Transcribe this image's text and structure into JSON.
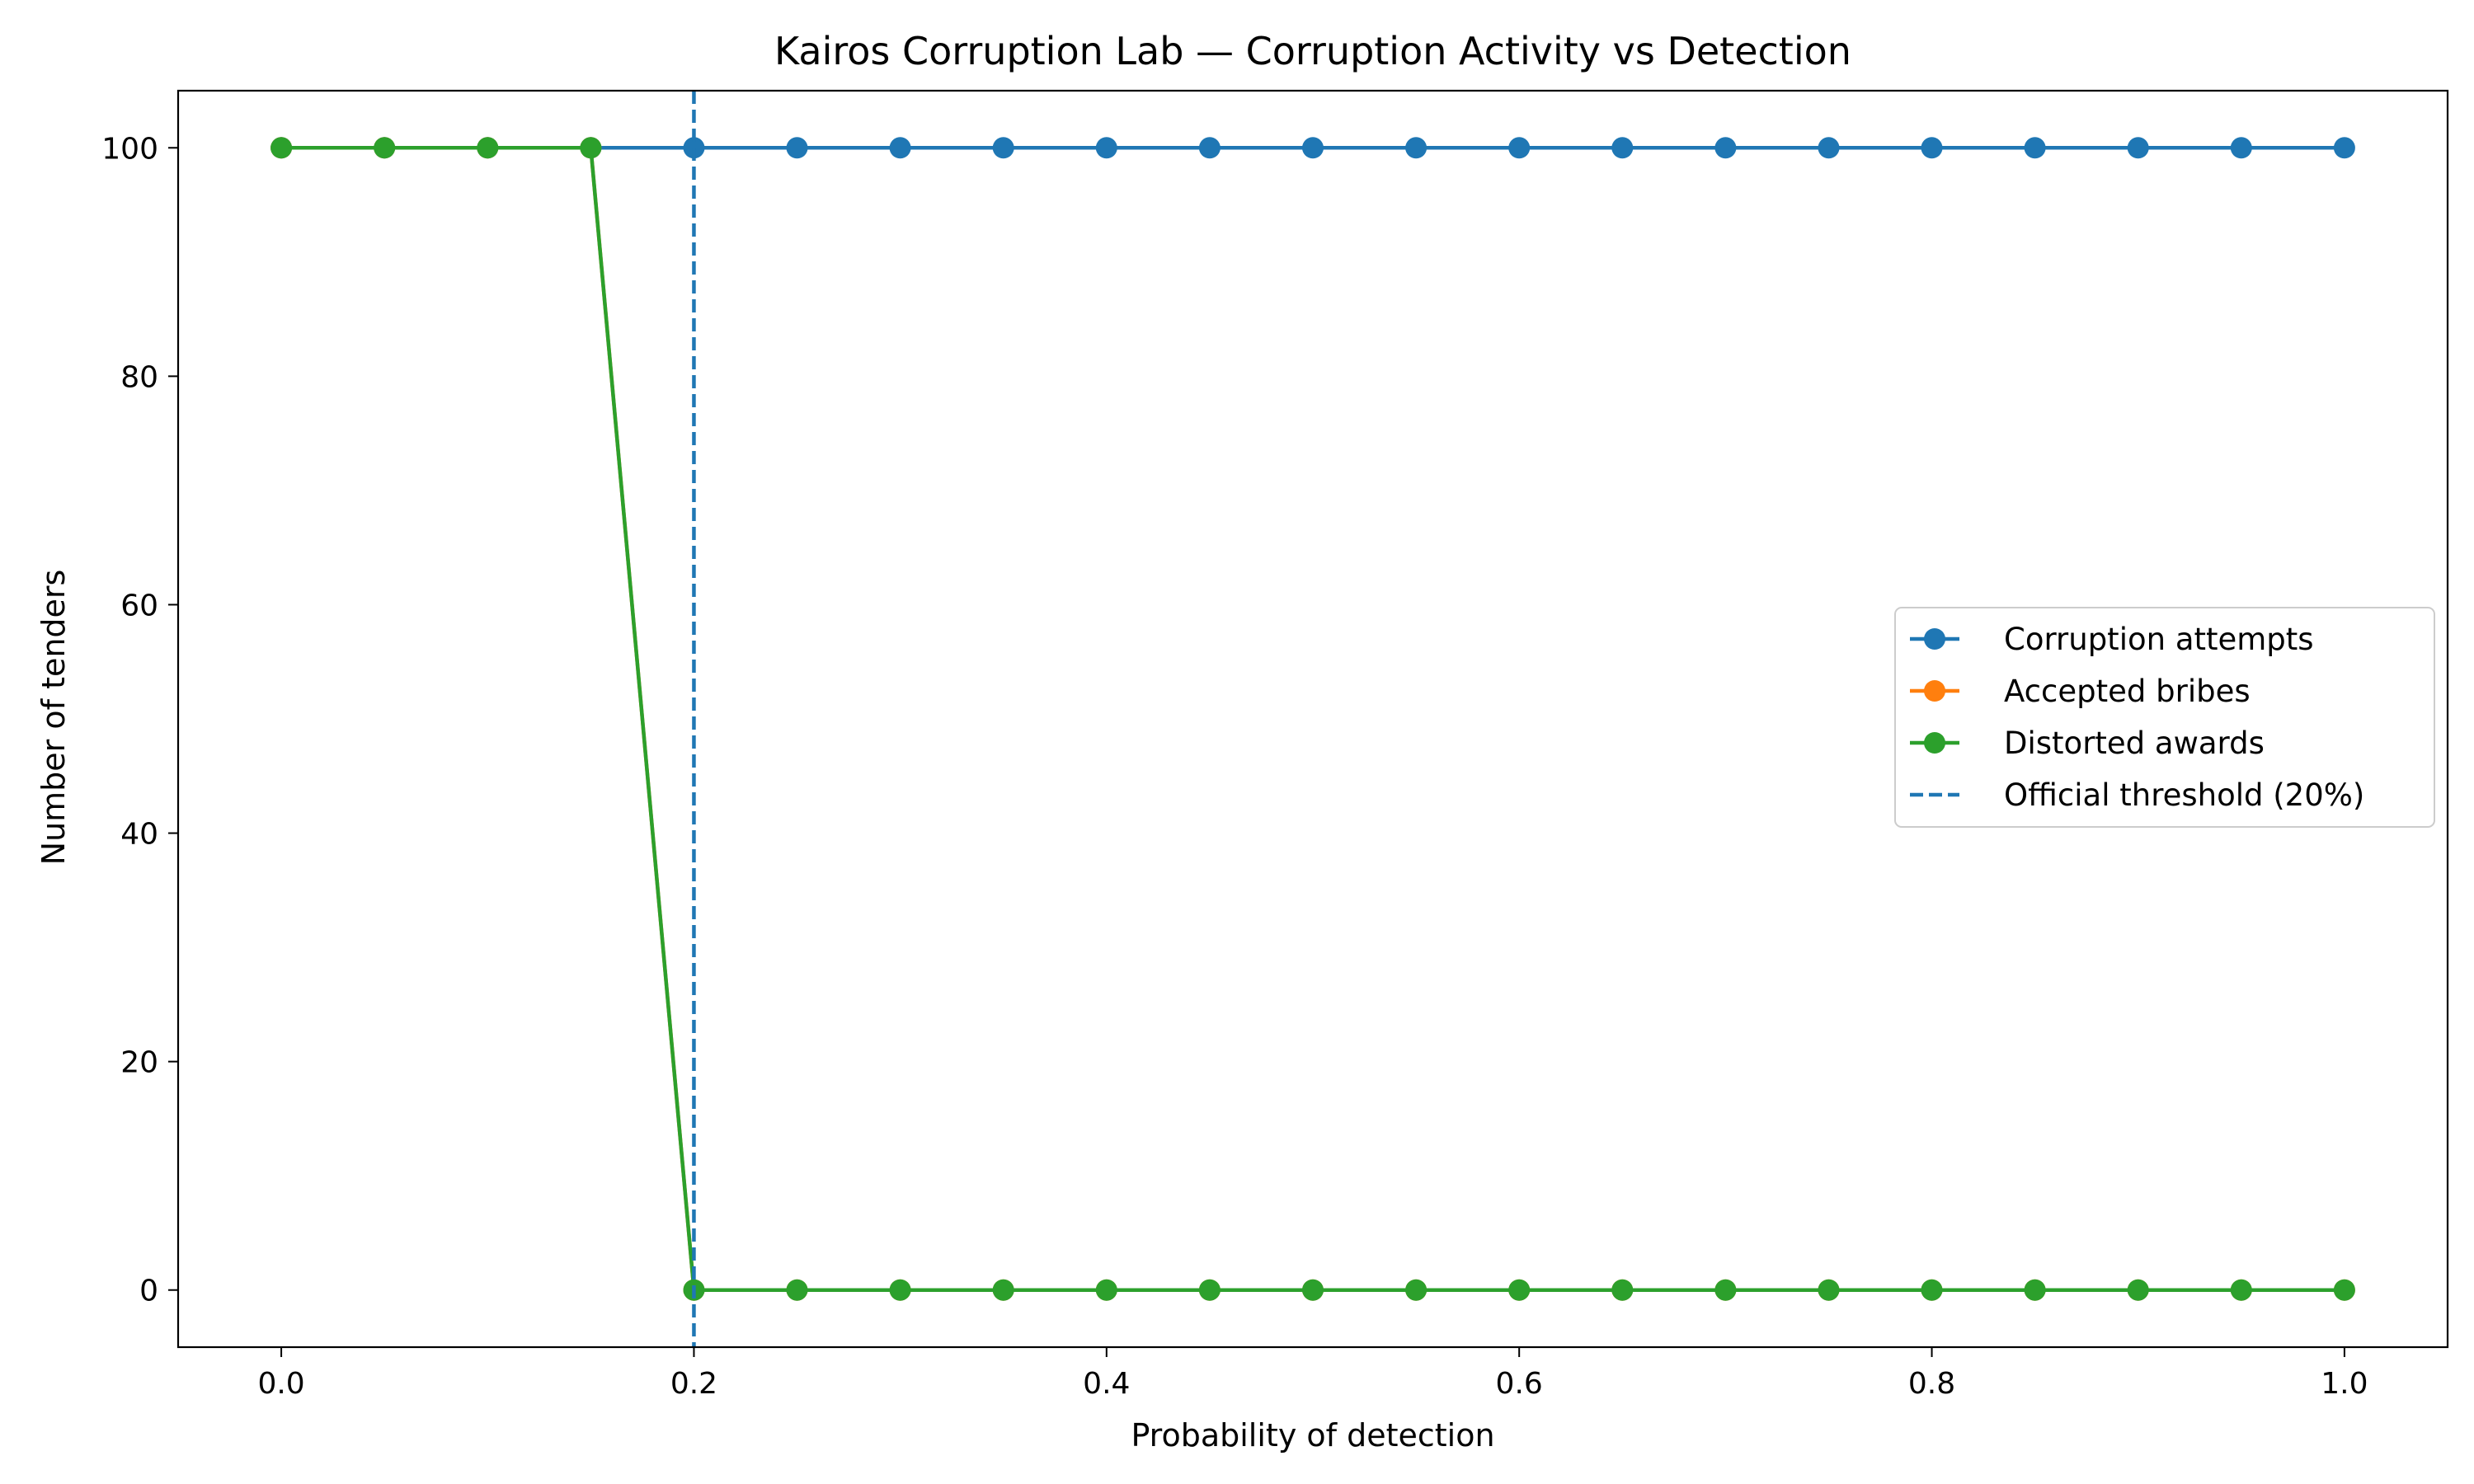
{
  "chart_data": {
    "type": "line",
    "title": "Kairos Corruption Lab — Corruption Activity vs Detection",
    "xlabel": "Probability of detection",
    "ylabel": "Number of tenders",
    "xlim": [
      -0.05,
      1.05
    ],
    "ylim": [
      -5,
      105
    ],
    "x_ticks": [
      0.0,
      0.2,
      0.4,
      0.6,
      0.8,
      1.0
    ],
    "x_tick_labels": [
      "0.0",
      "0.2",
      "0.4",
      "0.6",
      "0.8",
      "1.0"
    ],
    "y_ticks": [
      0,
      20,
      40,
      60,
      80,
      100
    ],
    "y_tick_labels": [
      "0",
      "20",
      "40",
      "60",
      "80",
      "100"
    ],
    "grid": false,
    "legend_position": "center-right",
    "x": [
      0.0,
      0.05,
      0.1,
      0.15,
      0.2,
      0.25,
      0.3,
      0.35,
      0.4,
      0.45,
      0.5,
      0.55,
      0.6,
      0.65,
      0.7,
      0.75,
      0.8,
      0.85,
      0.9,
      0.95,
      1.0
    ],
    "series": [
      {
        "name": "Corruption attempts",
        "color": "#1f77b4",
        "values": [
          100,
          100,
          100,
          100,
          100,
          100,
          100,
          100,
          100,
          100,
          100,
          100,
          100,
          100,
          100,
          100,
          100,
          100,
          100,
          100,
          100
        ]
      },
      {
        "name": "Accepted bribes",
        "color": "#ff7f0e",
        "values": [
          100,
          100,
          100,
          100,
          0,
          0,
          0,
          0,
          0,
          0,
          0,
          0,
          0,
          0,
          0,
          0,
          0,
          0,
          0,
          0,
          0
        ]
      },
      {
        "name": "Distorted awards",
        "color": "#2ca02c",
        "values": [
          100,
          100,
          100,
          100,
          0,
          0,
          0,
          0,
          0,
          0,
          0,
          0,
          0,
          0,
          0,
          0,
          0,
          0,
          0,
          0,
          0
        ]
      }
    ],
    "reference_lines": [
      {
        "name": "Official threshold (20%)",
        "orientation": "vertical",
        "x": 0.2,
        "color": "#1f77b4",
        "style": "dashed"
      }
    ]
  }
}
